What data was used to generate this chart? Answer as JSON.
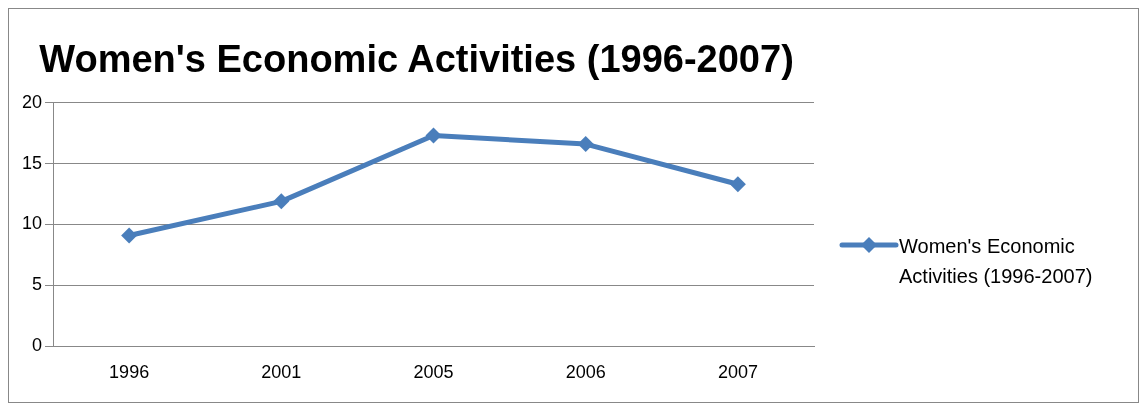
{
  "chart_data": {
    "type": "line",
    "title": "Women's Economic Activities (1996-2007)",
    "categories": [
      "1996",
      "2001",
      "2005",
      "2006",
      "2007"
    ],
    "series": [
      {
        "name": "Women's Economic Activities (1996-2007)",
        "color": "#4a7ebb",
        "values": [
          9.1,
          11.9,
          17.3,
          16.6,
          13.3
        ]
      }
    ],
    "ylim": [
      0,
      20
    ],
    "yticks": [
      0,
      5,
      10,
      15,
      20
    ],
    "grid": "y",
    "legend": "right",
    "marker": "diamond",
    "line_style": "solid"
  }
}
